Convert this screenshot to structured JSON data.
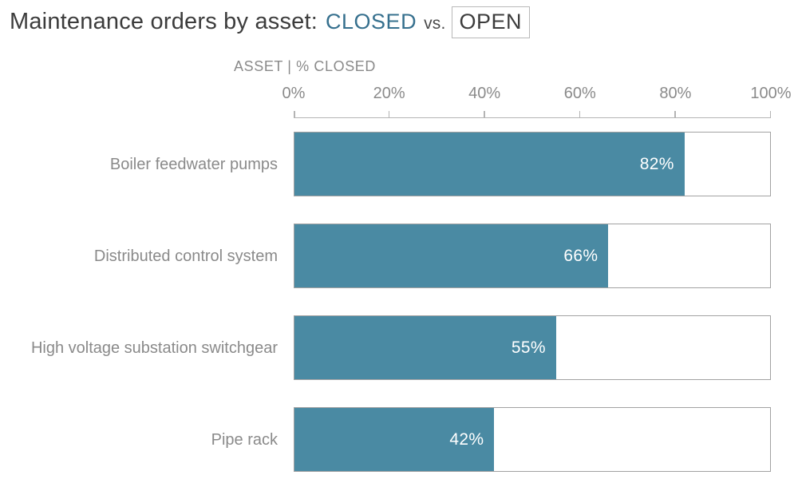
{
  "title": {
    "prefix": "Maintenance orders by asset:",
    "series_a": "CLOSED",
    "connector": "vs.",
    "series_b": "OPEN"
  },
  "axis": {
    "header": "ASSET | % CLOSED"
  },
  "colors": {
    "closed_fill": "#4A8AA3",
    "closed_title": "#36708E",
    "open_border": "#A2A2A2",
    "text_dark": "#3C3C3C",
    "text_gray": "#8A8A8A"
  },
  "chart_data": {
    "type": "bar",
    "orientation": "horizontal",
    "stacked": true,
    "title": "Maintenance orders by asset: CLOSED vs. OPEN",
    "xlabel": "ASSET | % CLOSED",
    "xlim": [
      0,
      100
    ],
    "x_ticks": [
      "0%",
      "20%",
      "40%",
      "60%",
      "80%",
      "100%"
    ],
    "grid": false,
    "legend_position": "in-title",
    "categories": [
      "Boiler feedwater pumps",
      "Distributed control system",
      "High voltage substation switchgear",
      "Pipe rack"
    ],
    "series": [
      {
        "name": "CLOSED",
        "values": [
          82,
          66,
          55,
          42
        ]
      },
      {
        "name": "OPEN",
        "values": [
          18,
          34,
          45,
          58
        ]
      }
    ],
    "value_labels": [
      "82%",
      "66%",
      "55%",
      "42%"
    ]
  }
}
